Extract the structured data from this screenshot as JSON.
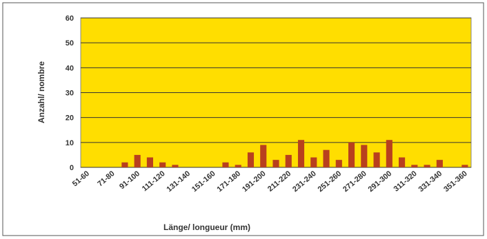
{
  "chart_data": {
    "type": "bar",
    "x_label": "Länge/ longueur (mm)",
    "y_label": "Anzahl/ nombre",
    "categories": [
      "51-60",
      null,
      "71-80",
      null,
      "91-100",
      null,
      "111-120",
      null,
      "131-140",
      null,
      "151-160",
      null,
      "171-180",
      null,
      "191-200",
      null,
      "211-220",
      null,
      "231-240",
      null,
      "251-260",
      null,
      "271-280",
      null,
      "291-300",
      null,
      "311-320",
      null,
      "331-340",
      null,
      "351-360"
    ],
    "values": [
      0,
      0,
      0,
      2,
      5,
      4,
      2,
      1,
      0,
      0,
      0,
      2,
      1,
      6,
      9,
      3,
      5,
      11,
      4,
      7,
      3,
      10,
      9,
      6,
      11,
      4,
      1,
      1,
      3,
      0,
      1
    ],
    "color": "#b8401e",
    "background": "#ffde00",
    "ylim": [
      0,
      60
    ],
    "yticks": [
      0,
      10,
      20,
      30,
      40,
      50,
      60
    ],
    "grid": true
  }
}
